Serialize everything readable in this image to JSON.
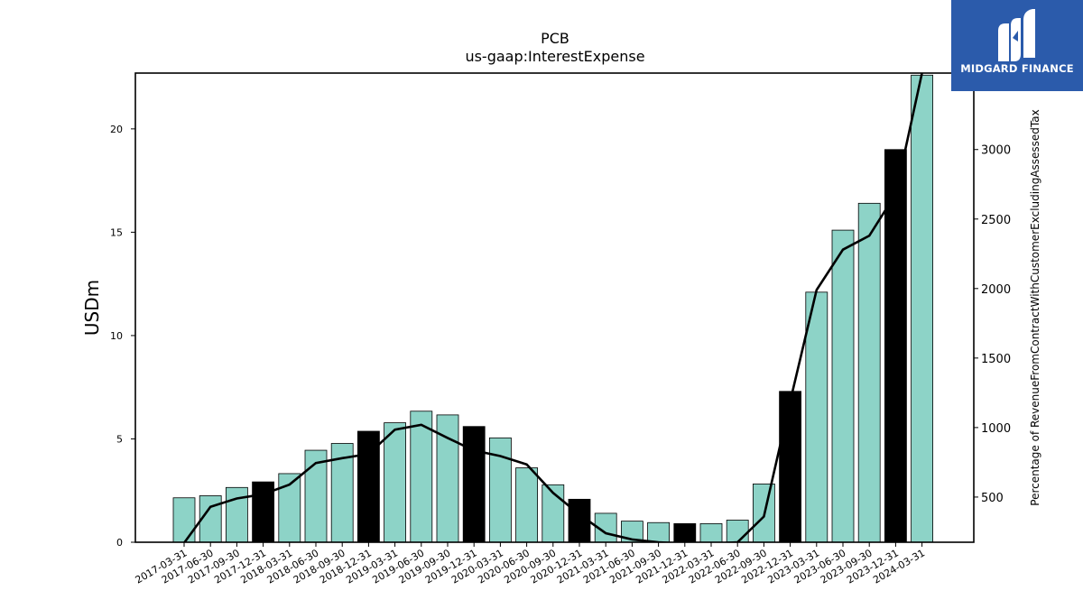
{
  "logo": {
    "text": "MIDGARD FINANCE",
    "icon": "midgard-logo-icon",
    "background": "#2b5bab"
  },
  "chart_data": {
    "type": "bar",
    "title": "PCB",
    "subtitle": "us-gaap:InterestExpense",
    "ylabel": "USDm",
    "y2label": "Percentage of RevenueFromContractWithCustomerExcludingAssessedTax",
    "ylim": [
      0,
      22.7
    ],
    "y2lim": [
      175,
      3550
    ],
    "yticks": [
      0,
      5,
      10,
      15,
      20
    ],
    "y2ticks": [
      500,
      1000,
      1500,
      2000,
      2500,
      3000
    ],
    "grid": false,
    "categories": [
      "2017-03-31",
      "2017-06-30",
      "2017-09-30",
      "2017-12-31",
      "2018-03-31",
      "2018-06-30",
      "2018-09-30",
      "2018-12-31",
      "2019-03-31",
      "2019-06-30",
      "2019-09-30",
      "2019-12-31",
      "2020-03-31",
      "2020-06-30",
      "2020-09-30",
      "2020-12-31",
      "2021-03-31",
      "2021-06-30",
      "2021-09-30",
      "2021-12-31",
      "2022-03-31",
      "2022-06-30",
      "2022-09-30",
      "2022-12-31",
      "2023-03-31",
      "2023-06-30",
      "2023-09-30",
      "2023-12-31",
      "2024-03-31"
    ],
    "series": [
      {
        "type": "bar",
        "axis": "left",
        "values": [
          2.15,
          2.25,
          2.65,
          2.92,
          3.32,
          4.45,
          4.78,
          5.37,
          5.78,
          6.34,
          6.16,
          5.6,
          5.05,
          3.6,
          2.78,
          2.08,
          1.4,
          1.02,
          0.95,
          0.9,
          0.9,
          1.07,
          2.82,
          7.3,
          12.1,
          15.1,
          16.4,
          19.0,
          22.6
        ],
        "highlight_color": "#000000",
        "base_color": "#8dd3c7",
        "highlight_indices": [
          3,
          7,
          11,
          15,
          19,
          23,
          27
        ]
      },
      {
        "type": "line",
        "axis": "right",
        "color": "#000000",
        "values": [
          170,
          430,
          490,
          520,
          590,
          745,
          780,
          810,
          985,
          1020,
          925,
          835,
          795,
          735,
          530,
          375,
          240,
          195,
          175,
          165,
          165,
          175,
          360,
          1190,
          1990,
          2280,
          2380,
          2680,
          3550
        ]
      }
    ]
  }
}
